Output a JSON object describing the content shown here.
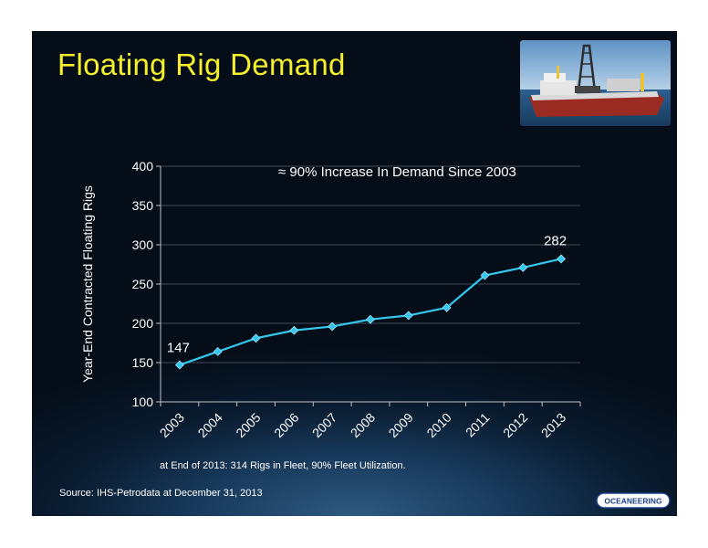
{
  "slide": {
    "title": "Floating Rig Demand",
    "footnote": "at End of 2013:  314 Rigs in Fleet, 90% Fleet Utilization.",
    "source": "Source:  IHS-Petrodata at December 31, 2013",
    "logo_text": "OCEANEERING",
    "photo_icon": "drillship-photo"
  },
  "colors": {
    "title": "#f5f02a",
    "line": "#35c8ef",
    "background": "#07101d"
  },
  "chart_data": {
    "type": "line",
    "categories": [
      "2003",
      "2004",
      "2005",
      "2006",
      "2007",
      "2008",
      "2009",
      "2010",
      "2011",
      "2012",
      "2013"
    ],
    "series": [
      {
        "values": [
          147,
          164,
          181,
          191,
          196,
          205,
          210,
          220,
          261,
          271,
          282
        ]
      }
    ],
    "ylabel": "Year-End Contracted Floating Rigs",
    "ylim": [
      100,
      400
    ],
    "yticks": [
      "100",
      "150",
      "200",
      "250",
      "300",
      "350",
      "400"
    ],
    "annotations": {
      "headline": "≈ 90% Increase In Demand Since 2003",
      "first_label": "147",
      "last_label": "282"
    },
    "grid": true,
    "legend": "none"
  }
}
